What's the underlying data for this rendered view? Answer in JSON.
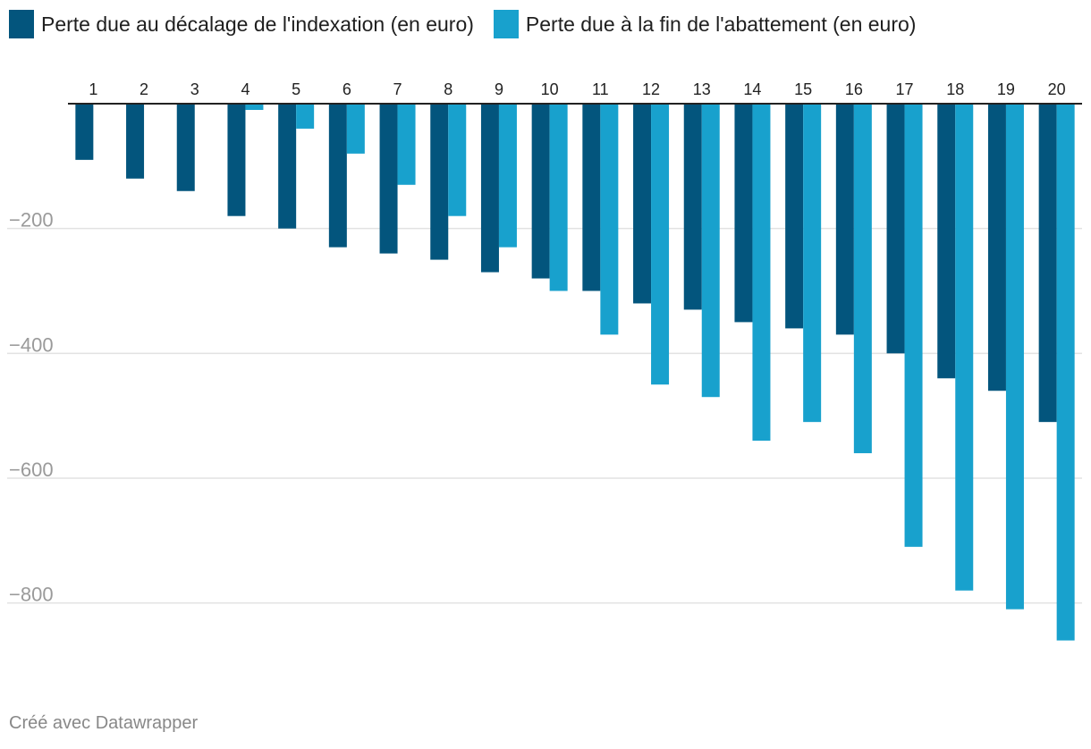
{
  "chart_data": {
    "type": "bar",
    "title": "",
    "xlabel": "",
    "ylabel": "",
    "categories": [
      "1",
      "2",
      "3",
      "4",
      "5",
      "6",
      "7",
      "8",
      "9",
      "10",
      "11",
      "12",
      "13",
      "14",
      "15",
      "16",
      "17",
      "18",
      "19",
      "20"
    ],
    "series": [
      {
        "name": "Perte due au décalage de l'indexation (en euro)",
        "color": "#03557d",
        "values": [
          -90,
          -120,
          -140,
          -180,
          -200,
          -230,
          -240,
          -250,
          -270,
          -280,
          -300,
          -320,
          -330,
          -350,
          -360,
          -370,
          -400,
          -440,
          -460,
          -510
        ]
      },
      {
        "name": "Perte due à la fin de l'abattement (en euro)",
        "color": "#18a1cd",
        "values": [
          0,
          0,
          0,
          -10,
          -40,
          -80,
          -130,
          -180,
          -230,
          -300,
          -370,
          -450,
          -470,
          -540,
          -510,
          -560,
          -710,
          -780,
          -810,
          -860
        ]
      }
    ],
    "ylim": [
      -860,
      0
    ],
    "y_ticks": [
      -200,
      -400,
      -600,
      -800
    ],
    "y_tick_labels": [
      "−200",
      "−400",
      "−600",
      "−800"
    ],
    "grid": true,
    "legend_position": "top-left",
    "x_tick_position": "top"
  },
  "footer": {
    "credit": "Créé avec Datawrapper"
  },
  "colors": {
    "grid": "#e2e2e2",
    "axis": "#222222",
    "tick_label": "#9a9a9a"
  }
}
